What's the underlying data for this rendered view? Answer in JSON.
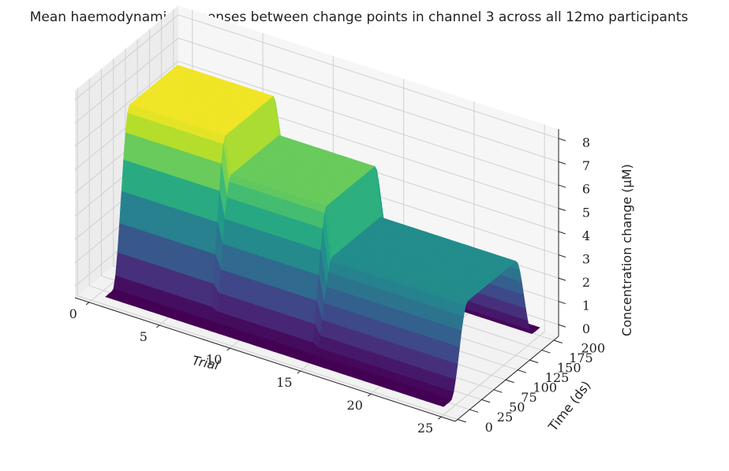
{
  "chart_data": {
    "type": "surface",
    "title": "Mean haemodynamic responses between change points in channel 3 across all 12mo participants",
    "xlabel": "Trial",
    "ylabel": "Time (ds)",
    "zlabel": "Concentration change (μM)",
    "xlim": [
      -1,
      26
    ],
    "ylim": [
      -5,
      210
    ],
    "zlim": [
      -0.5,
      8.4
    ],
    "x_ticks": [
      "0",
      "5",
      "10",
      "15",
      "20",
      "25"
    ],
    "y_ticks": [
      "0",
      "25",
      "50",
      "75",
      "100",
      "125",
      "150",
      "175",
      "200"
    ],
    "z_ticks": [
      "0",
      "1",
      "2",
      "3",
      "4",
      "5",
      "6",
      "7",
      "8"
    ],
    "colormap": "viridis",
    "grid": true,
    "segments": [
      {
        "trials": [
          1,
          8
        ],
        "peak": 7.4
      },
      {
        "trials": [
          8,
          15
        ],
        "peak": 5.8
      },
      {
        "trials": [
          15,
          25
        ],
        "peak": 3.7
      }
    ],
    "response_window": {
      "rise_start": 15,
      "rise_end": 50,
      "fall_start": 150,
      "fall_end": 185
    },
    "baseline_offset": -0.15
  }
}
